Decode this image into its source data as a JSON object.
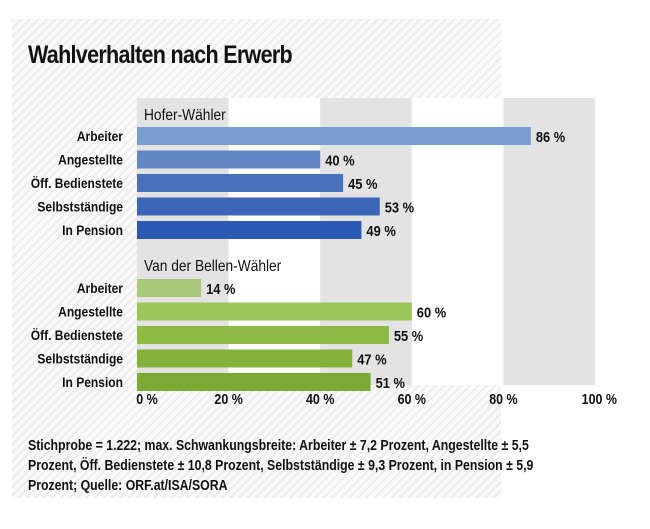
{
  "title": "Wahlverhalten nach Erwerb",
  "footnote": [
    "Stichprobe = 1.222; max. Schwankungsbreite: Arbeiter ± 7,2 Prozent, Angestellte ± 5,5",
    "Prozent, Öff. Bedienstete ± 10,8 Prozent, Selbstständige ± 9,3 Prozent, in Pension ± 5,9",
    "Prozent; Quelle: ORF.at/ISA/SORA"
  ],
  "chart_data": {
    "type": "bar",
    "orientation": "horizontal",
    "title": "Wahlverhalten nach Erwerb",
    "xlabel": "",
    "ylabel": "",
    "xlim": [
      0,
      100
    ],
    "x_ticks": [
      "0 %",
      "20 %",
      "40 %",
      "60 %",
      "80 %",
      "100 %"
    ],
    "categories": [
      "Arbeiter",
      "Angestellte",
      "Öff. Bedienstete",
      "Selbstständige",
      "In Pension"
    ],
    "unit": "%",
    "groups": [
      {
        "name": "Hofer-Wähler",
        "values": [
          86,
          40,
          45,
          53,
          49
        ],
        "value_labels": [
          "86 %",
          "40 %",
          "45 %",
          "53 %",
          "49 %"
        ],
        "colors": [
          "#7b9ccf",
          "#6587c4",
          "#4a72bc",
          "#3b65b7",
          "#2c59b1"
        ]
      },
      {
        "name": "Van der Bellen-Wähler",
        "values": [
          14,
          60,
          55,
          47,
          51
        ],
        "value_labels": [
          "14 %",
          "60 %",
          "55 %",
          "47 %",
          "51 %"
        ],
        "colors": [
          "#a8c97a",
          "#9cc55a",
          "#8dba45",
          "#84b23d",
          "#7aa934"
        ]
      }
    ],
    "background_bands": "alternating gray every 20 %",
    "grid": false,
    "legend": "none"
  }
}
